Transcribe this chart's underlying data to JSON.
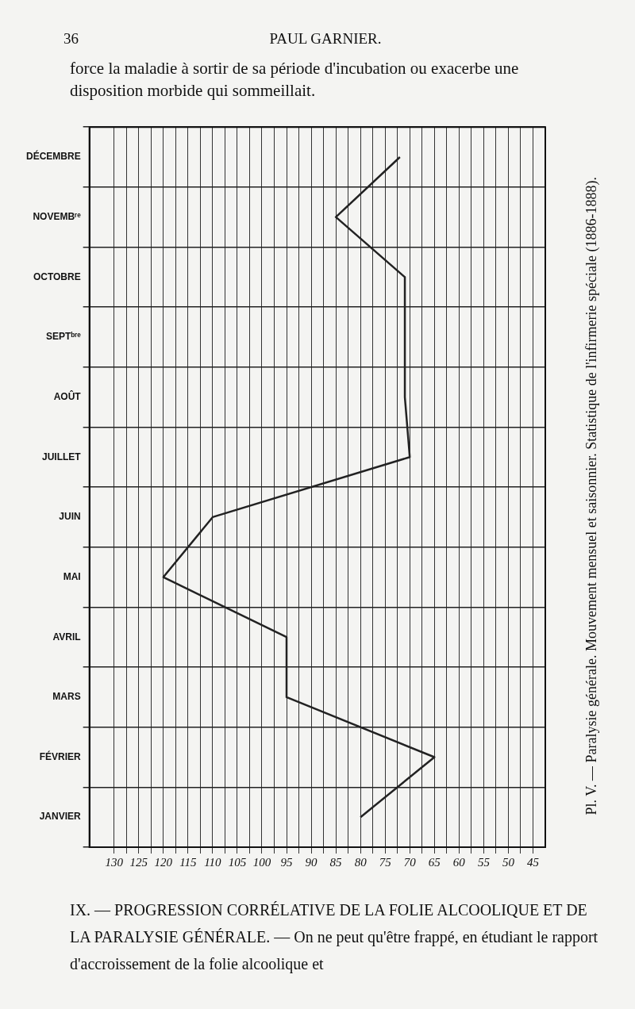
{
  "chart_data": {
    "type": "line",
    "title": "Pl. V. — Paralysie générale. Mouvement mensuel et saisonnier. Statistique de l'infirmerie spéciale (1886-1888).",
    "orientation": "horizontal",
    "categories": [
      "DÉCEMBRE",
      "NOVEMBʳᵉ",
      "OCTOBRE",
      "SEPTᵇʳᵉ",
      "AOÛT",
      "JUILLET",
      "JUIN",
      "MAI",
      "AVRIL",
      "MARS",
      "FÉVRIER",
      "JANVIER"
    ],
    "series": [
      {
        "color": "#222222",
        "values": [
          72,
          85,
          71,
          71,
          71,
          70,
          110,
          120,
          95,
          95,
          65,
          80
        ]
      }
    ],
    "xlim": [
      135,
      42.5
    ],
    "xticks": [
      130,
      {
        "value": 127.5,
        "label": null
      },
      125,
      {
        "value": 122.5,
        "label": null
      },
      120,
      {
        "value": 117.5,
        "label": null
      },
      115,
      {
        "value": 112.5,
        "label": null
      },
      110,
      {
        "value": 107.5,
        "label": null
      },
      105,
      {
        "value": 102.5,
        "label": null
      },
      100,
      {
        "value": 97.5,
        "label": null
      },
      95,
      {
        "value": 92.5,
        "label": null
      },
      90,
      {
        "value": 87.5,
        "label": null
      },
      85,
      {
        "value": 82.5,
        "label": null
      },
      80,
      {
        "value": 77.5,
        "label": null
      },
      75,
      {
        "value": 72.5,
        "label": null
      },
      70,
      {
        "value": 67.5,
        "label": null
      },
      65,
      {
        "value": 62.5,
        "label": null
      },
      60,
      {
        "value": 57.5,
        "label": null
      },
      55,
      {
        "value": 52.5,
        "label": null
      },
      50,
      {
        "value": 47.5,
        "label": null
      },
      45
    ],
    "grid": true,
    "legend": false,
    "marker": "none",
    "line_style": "solid",
    "annotations": [
      "36",
      "PAUL GARNIER.",
      "force la maladie à sortir de sa période d'incubation ou exacerbe une disposition morbide qui sommeillait.",
      "IX. — PROGRESSION CORRÉLATIVE DE LA FOLIE ALCOOLIQUE ET DE LA PARALYSIE GÉNÉRALE. — On ne peut qu'être frappé, en étudiant le rapport d'accroissement de la folie alcoolique et"
    ]
  }
}
